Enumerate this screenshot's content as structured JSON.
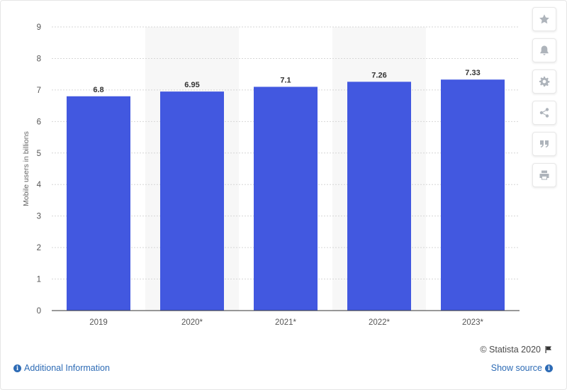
{
  "chart_data": {
    "type": "bar",
    "categories": [
      "2019",
      "2020*",
      "2021*",
      "2022*",
      "2023*"
    ],
    "values": [
      6.8,
      6.95,
      7.1,
      7.26,
      7.33
    ],
    "value_labels": [
      "6.8",
      "6.95",
      "7.1",
      "7.26",
      "7.33"
    ],
    "title": "",
    "xlabel": "",
    "ylabel": "Mobile users in billions",
    "ylim": [
      0,
      9
    ],
    "yticks": [
      0,
      1,
      2,
      3,
      4,
      5,
      6,
      7,
      8,
      9
    ],
    "bar_color": "#4258e0",
    "grid": true,
    "shaded_alternate_columns": true
  },
  "sidebar": {
    "icons": [
      "star-icon",
      "bell-icon",
      "gear-icon",
      "share-icon",
      "quote-icon",
      "print-icon"
    ]
  },
  "footer": {
    "copyright": "© Statista 2020",
    "additional_info": "Additional Information",
    "show_source": "Show source"
  }
}
